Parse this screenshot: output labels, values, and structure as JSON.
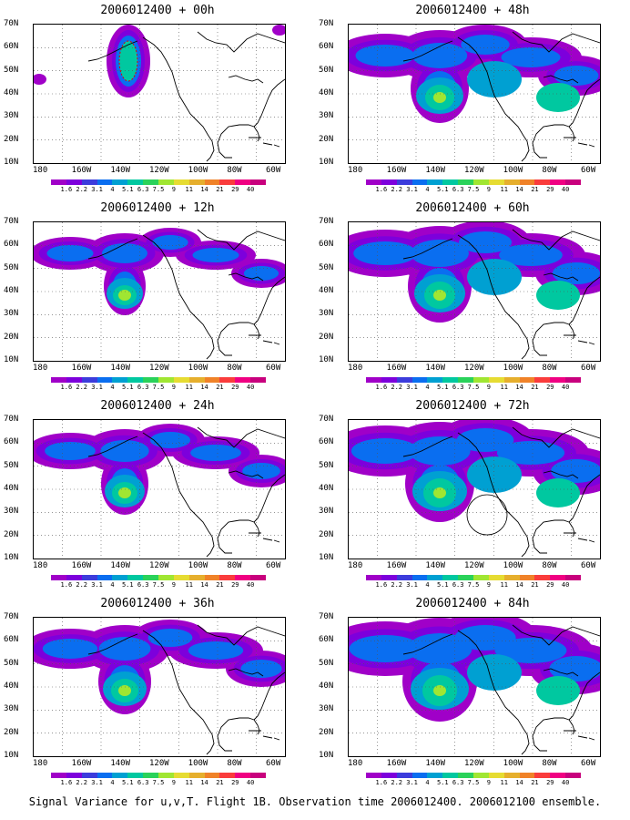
{
  "panels": [
    {
      "title": "2006012400 + 00h",
      "level": 0
    },
    {
      "title": "2006012400 + 48h",
      "level": 4
    },
    {
      "title": "2006012400 + 12h",
      "level": 1
    },
    {
      "title": "2006012400 + 60h",
      "level": 5
    },
    {
      "title": "2006012400 + 24h",
      "level": 2
    },
    {
      "title": "2006012400 + 72h",
      "level": 6
    },
    {
      "title": "2006012400 + 36h",
      "level": 3
    },
    {
      "title": "2006012400 + 84h",
      "level": 7
    }
  ],
  "lat_labels": [
    "70N",
    "60N",
    "50N",
    "40N",
    "30N",
    "20N",
    "10N"
  ],
  "lon_labels": [
    "180",
    "160W",
    "140W",
    "120W",
    "100W",
    "80W",
    "60W"
  ],
  "colorbar": {
    "labels": [
      "1.6",
      "2.2",
      "3.1",
      "4",
      "5.1",
      "6.3",
      "7.5",
      "9",
      "11",
      "14",
      "21",
      "29",
      "40"
    ],
    "colors": [
      "#a000c8",
      "#7d00dc",
      "#3c3cdc",
      "#0a6ef0",
      "#00a0d2",
      "#00c8a0",
      "#2ad25a",
      "#a0e632",
      "#e6dc32",
      "#e6af2d",
      "#f08228",
      "#fa3c3c",
      "#f00082",
      "#c8007d"
    ]
  },
  "footer": "Signal Variance for u,v,T. Flight 1B. Observation time 2006012400. 2006012100 ensemble."
}
